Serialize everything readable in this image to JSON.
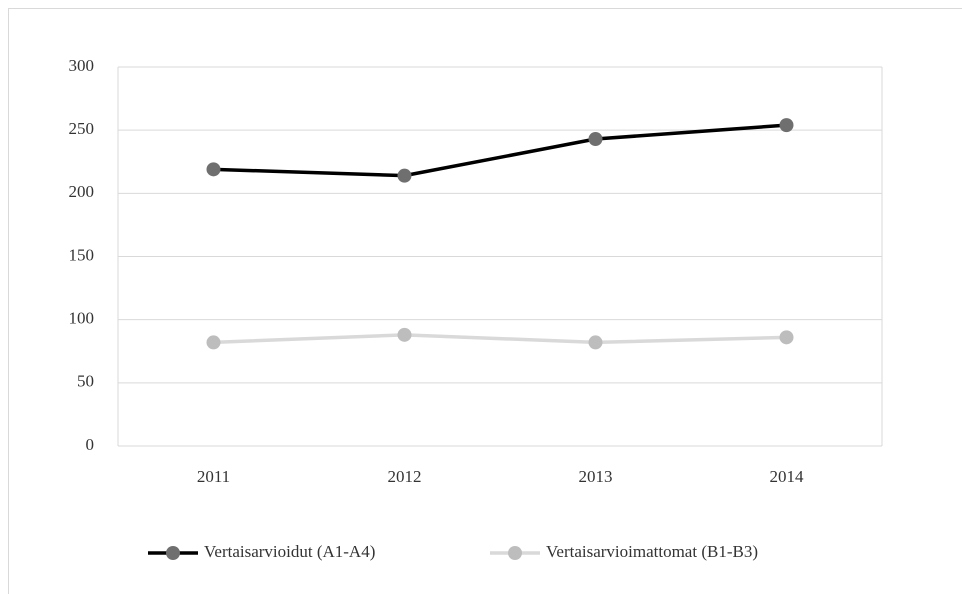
{
  "chart_data": {
    "type": "line",
    "categories": [
      "2011",
      "2012",
      "2013",
      "2014"
    ],
    "series": [
      {
        "name": "Vertaisarvioidut (A1-A4)",
        "color": "#6f6f6f",
        "line_color": "#000000",
        "values": [
          219,
          214,
          243,
          254
        ]
      },
      {
        "name": "Vertaisarvioimattomat (B1-B3)",
        "color": "#bdbdbd",
        "line_color": "#d9d9d9",
        "values": [
          82,
          88,
          82,
          86
        ]
      }
    ],
    "ylim": [
      0,
      300
    ],
    "yticks": [
      0,
      50,
      100,
      150,
      200,
      250,
      300
    ],
    "grid": true,
    "legend": "bottom"
  }
}
